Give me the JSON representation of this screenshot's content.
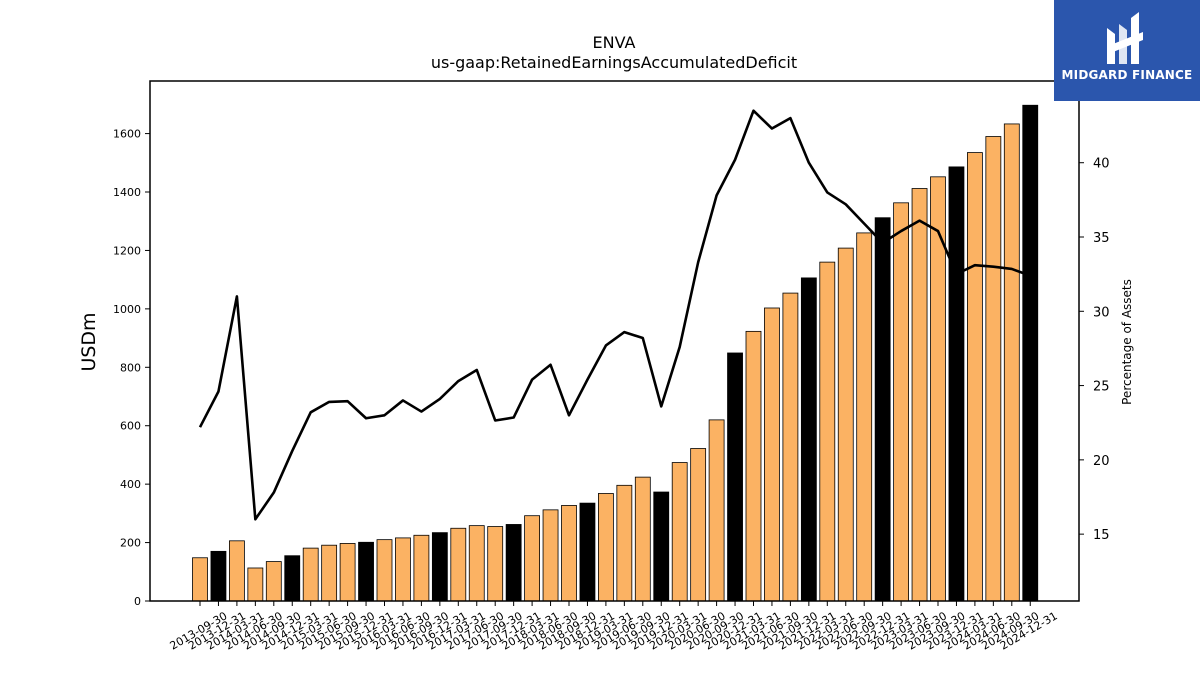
{
  "brand": {
    "name": "MIDGARD FINANCE",
    "logo_icon": "midgard-m-icon",
    "bg_color": "#2b56ad"
  },
  "chart_data": {
    "type": "bar",
    "title": "ENVA",
    "subtitle": "us-gaap:RetainedEarningsAccumulatedDeficit",
    "ylabel": "USDm",
    "y2label": "Percentage of Assets",
    "ylim": [
      0,
      1780
    ],
    "y2lim": [
      10.5,
      45.5
    ],
    "yticks": [
      0,
      200,
      400,
      600,
      800,
      1000,
      1200,
      1400,
      1600
    ],
    "y2ticks": [
      15,
      20,
      25,
      30,
      35,
      40
    ],
    "colors": {
      "q": "#fbb263",
      "fy": "#000000",
      "line": "#000000"
    },
    "categories": [
      "2013-09-30",
      "2013-12-31",
      "2014-03-31",
      "2014-06-30",
      "2014-09-30",
      "2014-12-31",
      "2015-03-31",
      "2015-06-30",
      "2015-09-30",
      "2015-12-31",
      "2016-03-31",
      "2016-06-30",
      "2016-09-30",
      "2016-12-31",
      "2017-03-31",
      "2017-06-30",
      "2017-09-30",
      "2017-12-31",
      "2018-03-31",
      "2018-06-30",
      "2018-09-30",
      "2018-12-31",
      "2019-03-31",
      "2019-06-30",
      "2019-09-30",
      "2019-12-31",
      "2020-03-31",
      "2020-06-30",
      "2020-09-30",
      "2020-12-31",
      "2021-03-31",
      "2021-06-30",
      "2021-09-30",
      "2021-12-31",
      "2022-03-31",
      "2022-06-30",
      "2022-09-30",
      "2022-12-31",
      "2023-03-31",
      "2023-06-30",
      "2023-09-30",
      "2023-12-31",
      "2024-03-31",
      "2024-06-30",
      "2024-09-30",
      "2024-12-31"
    ],
    "series": [
      {
        "type": "bar",
        "values": [
          148,
          170,
          206,
          113,
          135,
          155,
          181,
          191,
          197,
          201,
          210,
          216,
          225,
          234,
          249,
          258,
          255,
          262,
          292,
          312,
          327,
          335,
          368,
          396,
          424,
          373,
          474,
          522,
          620,
          849,
          923,
          1003,
          1054,
          1106,
          1160,
          1208,
          1260,
          1312,
          1363,
          1412,
          1452,
          1486,
          1535,
          1590,
          1633,
          1697
        ],
        "fiscal_year_end": [
          false,
          true,
          false,
          false,
          false,
          true,
          false,
          false,
          false,
          true,
          false,
          false,
          false,
          true,
          false,
          false,
          false,
          true,
          false,
          false,
          false,
          true,
          false,
          false,
          false,
          true,
          false,
          false,
          false,
          true,
          false,
          false,
          false,
          true,
          false,
          false,
          false,
          true,
          false,
          false,
          false,
          true,
          false,
          false,
          false,
          true
        ]
      },
      {
        "type": "line",
        "axis": "right",
        "values": [
          22.2,
          24.6,
          31.0,
          16.0,
          17.8,
          20.6,
          23.2,
          23.9,
          23.95,
          22.8,
          23.0,
          24.0,
          23.25,
          24.1,
          25.3,
          26.05,
          22.65,
          22.85,
          25.4,
          26.4,
          23.0,
          25.4,
          27.7,
          28.6,
          28.2,
          23.6,
          27.6,
          33.3,
          37.8,
          40.2,
          43.5,
          42.3,
          43.0,
          40.0,
          38.0,
          37.2,
          35.9,
          34.6,
          35.4,
          36.1,
          35.4,
          32.5,
          33.1,
          33.0,
          32.85,
          32.4
        ]
      }
    ]
  }
}
